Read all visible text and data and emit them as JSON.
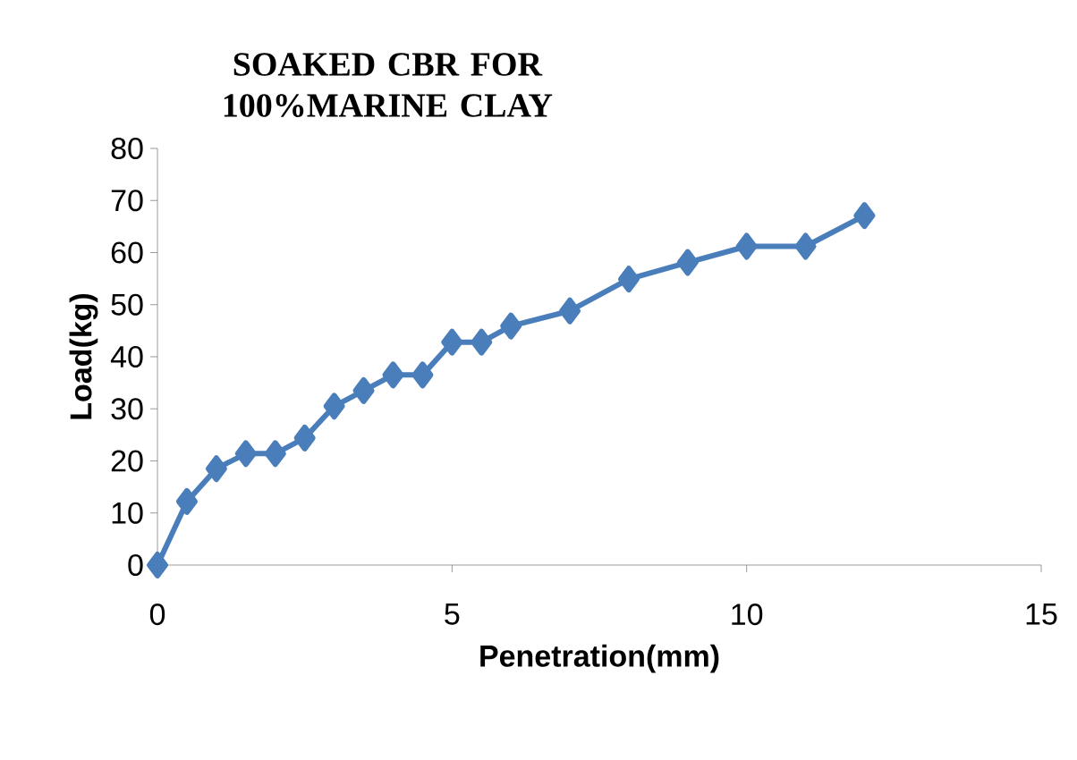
{
  "chart_data": {
    "type": "line",
    "title": "SOAKED CBR FOR 100%MARINE CLAY",
    "xlabel": "Penetration(mm)",
    "ylabel": "Load(kg)",
    "x": [
      0,
      0.5,
      1,
      1.5,
      2,
      2.5,
      3,
      3.5,
      4,
      4.5,
      5,
      5.5,
      6,
      7,
      8,
      9,
      10,
      11,
      12
    ],
    "series": [
      {
        "color": "#4a7ebb",
        "values": [
          0,
          12.2,
          18.5,
          21.4,
          21.4,
          24.4,
          30.5,
          33.5,
          36.5,
          36.5,
          42.8,
          42.8,
          45.9,
          48.8,
          54.9,
          58.1,
          61.2,
          61.2,
          67.1
        ]
      }
    ],
    "xlim": [
      0,
      15
    ],
    "ylim": [
      0,
      80
    ],
    "xticks": [
      0,
      5,
      10,
      15
    ],
    "yticks": [
      0,
      10,
      20,
      30,
      40,
      50,
      60,
      70,
      80
    ],
    "marker": "diamond",
    "line_style": "solid",
    "grid": false
  }
}
